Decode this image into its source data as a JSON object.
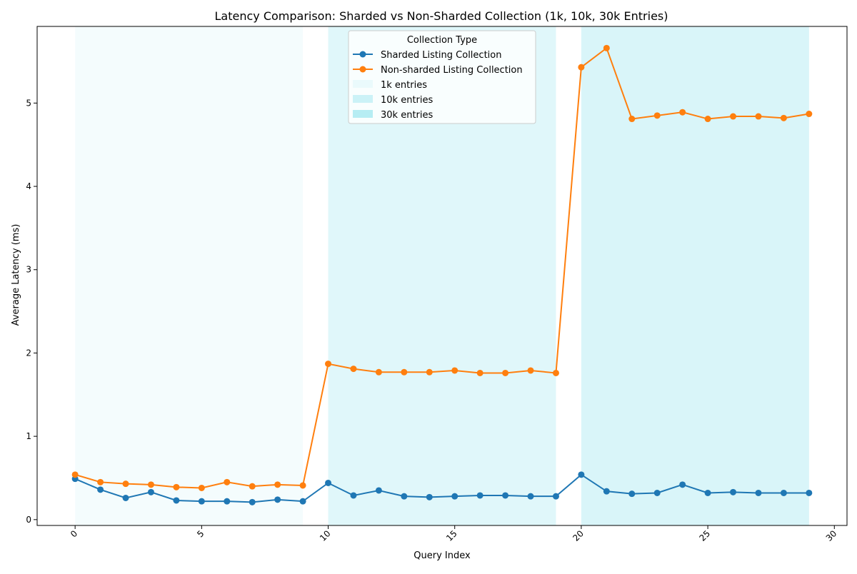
{
  "chart_data": {
    "type": "line",
    "title": "Latency Comparison: Sharded vs Non-Sharded Collection (1k, 10k, 30k Entries)",
    "xlabel": "Query Index",
    "ylabel": "Average Latency (ms)",
    "xlim": [
      -1.5,
      30.5
    ],
    "ylim": [
      -0.07,
      5.92
    ],
    "xticks": [
      0,
      5,
      10,
      15,
      20,
      25,
      30
    ],
    "yticks": [
      0,
      1,
      2,
      3,
      4,
      5
    ],
    "grid": false,
    "legend": {
      "title": "Collection Type",
      "placement": "top-center"
    },
    "x": [
      0,
      1,
      2,
      3,
      4,
      5,
      6,
      7,
      8,
      9,
      10,
      11,
      12,
      13,
      14,
      15,
      16,
      17,
      18,
      19,
      20,
      21,
      22,
      23,
      24,
      25,
      26,
      27,
      28,
      29
    ],
    "series": [
      {
        "name": "Sharded Listing Collection",
        "color": "#1f77b4",
        "values": [
          0.49,
          0.36,
          0.26,
          0.33,
          0.23,
          0.22,
          0.22,
          0.21,
          0.24,
          0.22,
          0.44,
          0.29,
          0.35,
          0.28,
          0.27,
          0.28,
          0.29,
          0.29,
          0.28,
          0.28,
          0.54,
          0.34,
          0.31,
          0.32,
          0.42,
          0.32,
          0.33,
          0.32,
          0.32,
          0.32
        ]
      },
      {
        "name": "Non-sharded Listing Collection",
        "color": "#ff7f0e",
        "values": [
          0.54,
          0.45,
          0.43,
          0.42,
          0.39,
          0.38,
          0.45,
          0.4,
          0.42,
          0.41,
          1.87,
          1.81,
          1.77,
          1.77,
          1.77,
          1.79,
          1.76,
          1.76,
          1.79,
          1.76,
          5.43,
          5.66,
          4.81,
          4.85,
          4.89,
          4.81,
          4.84,
          4.84,
          4.82,
          4.87
        ]
      }
    ],
    "regions": [
      {
        "name": "1k entries",
        "start": 0,
        "end": 9,
        "color": "#e0f7fa",
        "opacity": 0.35
      },
      {
        "name": "10k entries",
        "start": 10,
        "end": 19,
        "color": "#b2ebf2",
        "opacity": 0.4
      },
      {
        "name": "30k entries",
        "start": 20,
        "end": 29,
        "color": "#80deea",
        "opacity": 0.3
      }
    ]
  }
}
